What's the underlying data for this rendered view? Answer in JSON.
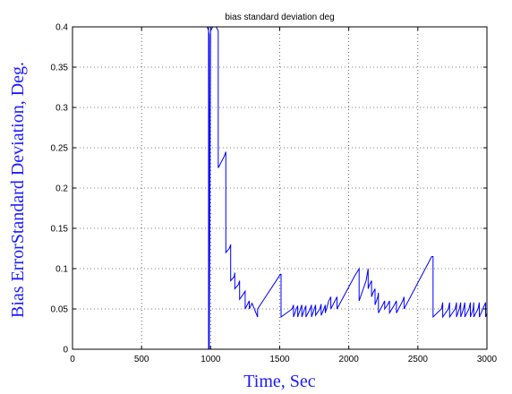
{
  "chart_data": {
    "type": "line",
    "title": "bias standard deviation deg",
    "xlabel": "Time, Sec",
    "ylabel": "Bias ErrorStandard Deviation, Deg.",
    "xlim": [
      0,
      3000
    ],
    "ylim": [
      0,
      0.4
    ],
    "xticks": [
      0,
      500,
      1000,
      1500,
      2000,
      2500,
      3000
    ],
    "yticks": [
      0,
      0.05,
      0.1,
      0.15,
      0.2,
      0.25,
      0.3,
      0.35,
      0.4
    ],
    "xtick_labels": [
      "0",
      "500",
      "1000",
      "1500",
      "2000",
      "2500",
      "3000"
    ],
    "ytick_labels": [
      "0",
      "0.05",
      "0.1",
      "0.15",
      "0.2",
      "0.25",
      "0.3",
      "0.35",
      "0.4"
    ],
    "grid": true,
    "line_color": "#0000ff",
    "label_color": "#1a1aff",
    "series": [
      {
        "x": [
          985,
          985,
          975,
          985,
          990,
          990,
          1000,
          1015,
          1040,
          1055,
          1055,
          1100,
          1110,
          1110,
          1135,
          1145,
          1145,
          1170,
          1175,
          1175,
          1200,
          1210,
          1210,
          1235,
          1250,
          1250,
          1265,
          1280,
          1280,
          1300,
          1340,
          1340,
          1505,
          1510,
          1510,
          1590,
          1600,
          1600,
          1620,
          1630,
          1630,
          1650,
          1660,
          1660,
          1680,
          1690,
          1690,
          1720,
          1730,
          1730,
          1750,
          1760,
          1760,
          1790,
          1800,
          1800,
          1820,
          1830,
          1830,
          1855,
          1870,
          1870,
          1900,
          1915,
          1915,
          2040,
          2075,
          2075,
          2125,
          2140,
          2140,
          2150,
          2165,
          2165,
          2175,
          2190,
          2190,
          2210,
          2215,
          2215,
          2245,
          2260,
          2260,
          2280,
          2295,
          2295,
          2330,
          2345,
          2345,
          2390,
          2400,
          2400,
          2600,
          2610,
          2610,
          2670,
          2680,
          2680,
          2720,
          2730,
          2730,
          2770,
          2780,
          2780,
          2800,
          2810,
          2810,
          2830,
          2840,
          2840,
          2870,
          2880,
          2880,
          2900,
          2905,
          2905,
          2935,
          2945,
          2945,
          2970,
          2990,
          2990,
          3000
        ],
        "y": [
          0.0,
          0.4,
          0.4,
          0.395,
          0.39,
          0.0,
          0.395,
          0.4,
          0.4,
          0.395,
          0.225,
          0.24,
          0.245,
          0.12,
          0.125,
          0.13,
          0.085,
          0.09,
          0.095,
          0.075,
          0.08,
          0.085,
          0.062,
          0.068,
          0.072,
          0.05,
          0.055,
          0.06,
          0.05,
          0.057,
          0.04,
          0.05,
          0.093,
          0.093,
          0.04,
          0.05,
          0.055,
          0.04,
          0.05,
          0.054,
          0.04,
          0.05,
          0.055,
          0.04,
          0.05,
          0.054,
          0.04,
          0.05,
          0.055,
          0.04,
          0.05,
          0.055,
          0.042,
          0.05,
          0.056,
          0.042,
          0.05,
          0.055,
          0.045,
          0.06,
          0.065,
          0.05,
          0.06,
          0.065,
          0.05,
          0.09,
          0.1,
          0.06,
          0.085,
          0.1,
          0.075,
          0.08,
          0.085,
          0.065,
          0.07,
          0.075,
          0.055,
          0.065,
          0.07,
          0.045,
          0.055,
          0.06,
          0.05,
          0.055,
          0.06,
          0.045,
          0.055,
          0.06,
          0.045,
          0.06,
          0.065,
          0.05,
          0.115,
          0.115,
          0.04,
          0.05,
          0.058,
          0.04,
          0.05,
          0.058,
          0.04,
          0.05,
          0.058,
          0.04,
          0.05,
          0.058,
          0.04,
          0.05,
          0.058,
          0.04,
          0.05,
          0.058,
          0.04,
          0.05,
          0.058,
          0.04,
          0.05,
          0.058,
          0.04,
          0.05,
          0.058,
          0.04,
          0.045
        ]
      }
    ]
  }
}
